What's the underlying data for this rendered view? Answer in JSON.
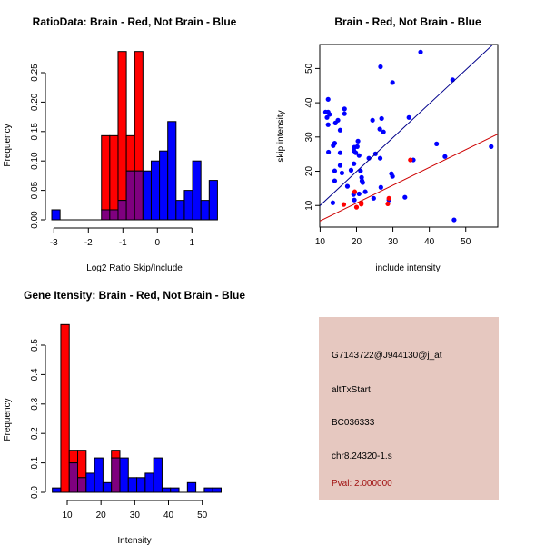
{
  "colors": {
    "red": "#ff0000",
    "blue": "#0000ff",
    "overlap": "#7f007f",
    "panel": "#e6c8c0",
    "pval": "#a01010",
    "blue_line": "#00008b",
    "red_line": "#cd0000"
  },
  "chart_data": [
    {
      "type": "bar",
      "title": "RatioData: Brain - Red, Not Brain - Blue",
      "xlabel": "Log2 Ratio Skip/Include",
      "ylabel": "Frequency",
      "bin_start": -3.06,
      "bin_width": 0.24,
      "xticks": [
        -3,
        -2,
        -1,
        0,
        1
      ],
      "yticks": [
        0,
        0.05,
        0.1,
        0.15,
        0.2,
        0.25
      ],
      "ytick_labels": [
        "0.00",
        "0.05",
        "0.10",
        "0.15",
        "0.20",
        "0.25"
      ],
      "series": [
        {
          "name": "Not Brain",
          "color": "blue",
          "values": [
            0.017,
            0,
            0,
            0,
            0,
            0,
            0.017,
            0.017,
            0.033,
            0.083,
            0.083,
            0.083,
            0.1,
            0.117,
            0.167,
            0.033,
            0.05,
            0.1,
            0.033,
            0.067
          ]
        },
        {
          "name": "Brain",
          "color": "red",
          "values": [
            0,
            0,
            0,
            0,
            0,
            0,
            0.143,
            0.143,
            0.286,
            0.143,
            0.286,
            0,
            0,
            0,
            0,
            0,
            0,
            0,
            0,
            0
          ]
        }
      ]
    },
    {
      "type": "scatter",
      "title": "Brain - Red, Not Brain - Blue",
      "xlabel": "include intensity",
      "ylabel": "skip intensity",
      "xlim": [
        9.9,
        58.8
      ],
      "ylim": [
        3.7,
        57
      ],
      "xticks": [
        10,
        20,
        30,
        40,
        50
      ],
      "yticks": [
        10,
        20,
        30,
        40,
        50
      ],
      "series": [
        {
          "name": "Not Brain",
          "color": "blue",
          "points": [
            [
              37.6,
              54.8
            ],
            [
              26.6,
              50.5
            ],
            [
              29.9,
              45.9
            ],
            [
              46.4,
              46.7
            ],
            [
              12.2,
              41
            ],
            [
              11.5,
              37.3
            ],
            [
              12.2,
              37.3
            ],
            [
              12.6,
              36.6
            ],
            [
              11.9,
              35.7
            ],
            [
              16.7,
              38.2
            ],
            [
              16.7,
              36.8
            ],
            [
              14.9,
              34.9
            ],
            [
              14.2,
              34.1
            ],
            [
              12.2,
              33.6
            ],
            [
              24.4,
              34.9
            ],
            [
              26.9,
              35.4
            ],
            [
              34.4,
              35.7
            ],
            [
              15.5,
              32
            ],
            [
              26.4,
              32.3
            ],
            [
              27.4,
              31.5
            ],
            [
              20.4,
              28.8
            ],
            [
              14,
              28.2
            ],
            [
              13.6,
              27.5
            ],
            [
              42,
              28
            ],
            [
              57,
              27.2
            ],
            [
              19.4,
              27
            ],
            [
              20.2,
              27.2
            ],
            [
              19.3,
              26
            ],
            [
              19.8,
              25.4
            ],
            [
              12.3,
              25.6
            ],
            [
              15.5,
              25.4
            ],
            [
              25.2,
              25.1
            ],
            [
              20.7,
              24.6
            ],
            [
              44.3,
              24.3
            ],
            [
              23.4,
              23.8
            ],
            [
              26.5,
              23.8
            ],
            [
              35.6,
              23.3
            ],
            [
              19.3,
              22.2
            ],
            [
              15.5,
              21.7
            ],
            [
              14,
              20.1
            ],
            [
              21.1,
              20.1
            ],
            [
              18.5,
              20.3
            ],
            [
              16,
              19.5
            ],
            [
              29.6,
              19.3
            ],
            [
              29.9,
              18.5
            ],
            [
              21.4,
              18.2
            ],
            [
              21.5,
              17.2
            ],
            [
              21.7,
              16.7
            ],
            [
              14,
              17.2
            ],
            [
              17.5,
              15.6
            ],
            [
              26.7,
              15.3
            ],
            [
              22.4,
              14
            ],
            [
              19.2,
              13.2
            ],
            [
              20.7,
              13.4
            ],
            [
              13.5,
              10.8
            ],
            [
              24.7,
              12.1
            ],
            [
              33.3,
              12.4
            ],
            [
              19.4,
              11.6
            ],
            [
              28.9,
              11.6
            ],
            [
              46.8,
              5.8
            ]
          ],
          "fit": {
            "intercept": 0.1,
            "slope": 0.99
          }
        },
        {
          "name": "Brain",
          "color": "red",
          "points": [
            [
              16.5,
              10.3
            ],
            [
              19.5,
              14
            ],
            [
              20,
              9.5
            ],
            [
              21.3,
              10.8
            ],
            [
              21.3,
              10.4
            ],
            [
              28.9,
              12.1
            ],
            [
              28.6,
              10.5
            ],
            [
              34.8,
              23.3
            ]
          ],
          "fit": {
            "intercept": 0.3,
            "slope": 0.52
          }
        }
      ]
    },
    {
      "type": "bar",
      "title": "Gene Itensity: Brain - Red, Not Brain - Blue",
      "xlabel": "Intensity",
      "ylabel": "Frequency",
      "bin_start": 5.6,
      "bin_width": 2.5,
      "xticks": [
        10,
        20,
        30,
        40,
        50
      ],
      "yticks": [
        0,
        0.1,
        0.2,
        0.3,
        0.4,
        0.5
      ],
      "ytick_labels": [
        "0.0",
        "0.1",
        "0.2",
        "0.3",
        "0.4",
        "0.5"
      ],
      "series": [
        {
          "name": "Not Brain",
          "color": "blue",
          "values": [
            0.015,
            0,
            0.1,
            0.05,
            0.065,
            0.117,
            0.033,
            0.117,
            0.117,
            0.05,
            0.05,
            0.065,
            0.117,
            0.015,
            0.015,
            0,
            0.033,
            0,
            0.015,
            0.015
          ]
        },
        {
          "name": "Brain",
          "color": "red",
          "values": [
            0,
            0.57,
            0.143,
            0.143,
            0,
            0,
            0,
            0.143,
            0,
            0,
            0,
            0,
            0,
            0,
            0,
            0,
            0,
            0,
            0,
            0
          ]
        }
      ]
    }
  ],
  "info_panel": {
    "probe": "G7143722@J944130@j_at",
    "event": "altTxStart",
    "accession": "BC036333",
    "location": "chr8.24320-1.s",
    "pval": "Pval: 2.000000"
  }
}
